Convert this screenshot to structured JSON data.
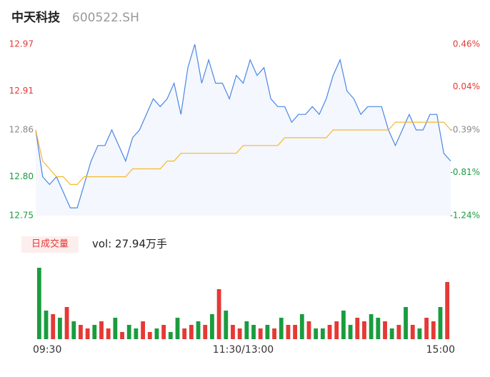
{
  "chart_data": [
    {
      "type": "line",
      "title": "中天科技",
      "subtitle": "600522.SH",
      "x": [
        0,
        4,
        8,
        12,
        16,
        20,
        24,
        28,
        32,
        36,
        40,
        44,
        48,
        52,
        56,
        60,
        64,
        68,
        72,
        76,
        80,
        84,
        88,
        92,
        96,
        100,
        104,
        108,
        112,
        116,
        120,
        124,
        128,
        132,
        136,
        140,
        144,
        148,
        152,
        156,
        160,
        164,
        168,
        172,
        176,
        180,
        184,
        188,
        192,
        196,
        200,
        204,
        208,
        212,
        216,
        220,
        224,
        228,
        232,
        236,
        240
      ],
      "xlim": [
        0,
        240
      ],
      "series": [
        {
          "color": "#4a86e8",
          "fill": "#f4f7fd",
          "values": [
            12.86,
            12.8,
            12.79,
            12.8,
            12.78,
            12.76,
            12.76,
            12.79,
            12.82,
            12.84,
            12.84,
            12.86,
            12.84,
            12.82,
            12.85,
            12.86,
            12.88,
            12.9,
            12.89,
            12.9,
            12.92,
            12.88,
            12.94,
            12.97,
            12.92,
            12.95,
            12.92,
            12.92,
            12.9,
            12.93,
            12.92,
            12.95,
            12.93,
            12.94,
            12.9,
            12.89,
            12.89,
            12.87,
            12.88,
            12.88,
            12.89,
            12.88,
            12.9,
            12.93,
            12.95,
            12.91,
            12.9,
            12.88,
            12.89,
            12.89,
            12.89,
            12.86,
            12.84,
            12.86,
            12.88,
            12.86,
            12.86,
            12.88,
            12.88,
            12.83,
            12.82
          ]
        },
        {
          "color": "#f5b82e",
          "values": [
            12.86,
            12.82,
            12.81,
            12.8,
            12.8,
            12.79,
            12.79,
            12.8,
            12.8,
            12.8,
            12.8,
            12.8,
            12.8,
            12.8,
            12.81,
            12.81,
            12.81,
            12.81,
            12.81,
            12.82,
            12.82,
            12.83,
            12.83,
            12.83,
            12.83,
            12.83,
            12.83,
            12.83,
            12.83,
            12.83,
            12.84,
            12.84,
            12.84,
            12.84,
            12.84,
            12.84,
            12.85,
            12.85,
            12.85,
            12.85,
            12.85,
            12.85,
            12.85,
            12.86,
            12.86,
            12.86,
            12.86,
            12.86,
            12.86,
            12.86,
            12.86,
            12.86,
            12.87,
            12.87,
            12.87,
            12.87,
            12.87,
            12.87,
            12.87,
            12.87,
            12.86
          ]
        }
      ],
      "ylim": [
        12.75,
        12.97
      ],
      "yticks": [
        12.97,
        12.91,
        12.86,
        {
          "value": 12.8,
          "label": "12.80"
        },
        12.75
      ],
      "ytick_colors": [
        "#e53935",
        "#e53935",
        "#888888",
        "#1a9c3e",
        "#1a9c3e"
      ],
      "y2lim": [
        -1.24,
        0.46
      ],
      "y2ticks": [
        {
          "value": 0.46,
          "label": "0.46%"
        },
        {
          "value": 0.04,
          "label": "0.04%"
        },
        {
          "value": -0.39,
          "label": "-0.39%"
        },
        {
          "value": -0.81,
          "label": "-0.81%"
        },
        {
          "value": -1.24,
          "label": "-1.24%"
        }
      ],
      "y2tick_colors": [
        "#e53935",
        "#e53935",
        "#888888",
        "#1a9c3e",
        "#1a9c3e"
      ]
    },
    {
      "type": "bar",
      "title": "日成交量",
      "annotation": "vol: 27.94万手",
      "x": [
        2,
        6,
        10,
        14,
        18,
        22,
        26,
        30,
        34,
        38,
        42,
        46,
        50,
        54,
        58,
        62,
        66,
        70,
        74,
        78,
        82,
        86,
        90,
        94,
        98,
        102,
        106,
        110,
        114,
        118,
        122,
        126,
        130,
        134,
        138,
        142,
        146,
        150,
        154,
        158,
        162,
        166,
        170,
        174,
        178,
        182,
        186,
        190,
        194,
        198,
        202,
        206,
        210,
        214,
        218,
        222,
        226,
        230,
        234,
        238
      ],
      "xlim": [
        0,
        240
      ],
      "xticks": [
        {
          "value": 0,
          "label": "09:30"
        },
        {
          "value": 120,
          "label": "11:30/13:00"
        },
        {
          "value": 240,
          "label": "15:00"
        }
      ],
      "values": [
        100,
        40,
        35,
        30,
        45,
        25,
        20,
        15,
        20,
        25,
        15,
        30,
        10,
        20,
        15,
        25,
        10,
        15,
        20,
        10,
        30,
        15,
        20,
        25,
        20,
        35,
        70,
        40,
        20,
        15,
        25,
        20,
        15,
        20,
        15,
        30,
        20,
        20,
        35,
        25,
        15,
        15,
        20,
        25,
        40,
        20,
        30,
        25,
        35,
        30,
        25,
        15,
        20,
        45,
        20,
        15,
        30,
        25,
        45,
        80
      ],
      "directions": [
        -1,
        -1,
        1,
        -1,
        1,
        -1,
        1,
        1,
        -1,
        1,
        1,
        -1,
        1,
        -1,
        -1,
        1,
        1,
        -1,
        1,
        -1,
        -1,
        1,
        1,
        -1,
        1,
        -1,
        1,
        -1,
        1,
        1,
        -1,
        -1,
        1,
        -1,
        1,
        -1,
        1,
        1,
        -1,
        1,
        -1,
        -1,
        1,
        1,
        -1,
        -1,
        1,
        1,
        -1,
        -1,
        1,
        -1,
        1,
        -1,
        1,
        -1,
        1,
        1,
        -1,
        1
      ],
      "up_color": "#e53935",
      "down_color": "#1a9c3e",
      "ylim": [
        0,
        100
      ]
    }
  ]
}
